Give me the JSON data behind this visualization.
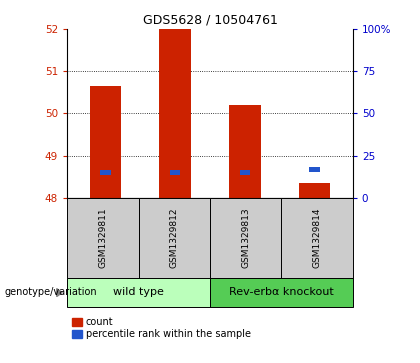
{
  "title": "GDS5628 / 10504761",
  "samples": [
    "GSM1329811",
    "GSM1329812",
    "GSM1329813",
    "GSM1329814"
  ],
  "group_labels": [
    "wild type",
    "Rev-erbα knockout"
  ],
  "red_bar_tops": [
    50.65,
    52.0,
    50.2,
    48.35
  ],
  "red_bar_bottom": 48.0,
  "blue_bar_values": [
    48.55,
    48.55,
    48.55,
    48.62
  ],
  "blue_bar_height": 0.1,
  "blue_bar_width": 0.15,
  "bar_color_red": "#cc2200",
  "bar_color_blue": "#2255cc",
  "ylim": [
    48.0,
    52.0
  ],
  "yticks_left": [
    48,
    49,
    50,
    51,
    52
  ],
  "yticks_right": [
    0,
    25,
    50,
    75,
    100
  ],
  "bar_width": 0.45,
  "axis_label_color_left": "#cc2200",
  "axis_label_color_right": "#0000cc",
  "sample_area_color": "#cccccc",
  "wt_color": "#bbffbb",
  "ko_color": "#55cc55",
  "legend_items": [
    "count",
    "percentile rank within the sample"
  ],
  "genotype_label": "genotype/variation",
  "grid_lines": [
    49,
    50,
    51
  ],
  "title_fontsize": 9,
  "tick_fontsize": 7.5,
  "sample_fontsize": 6.5,
  "group_fontsize": 8,
  "legend_fontsize": 7
}
